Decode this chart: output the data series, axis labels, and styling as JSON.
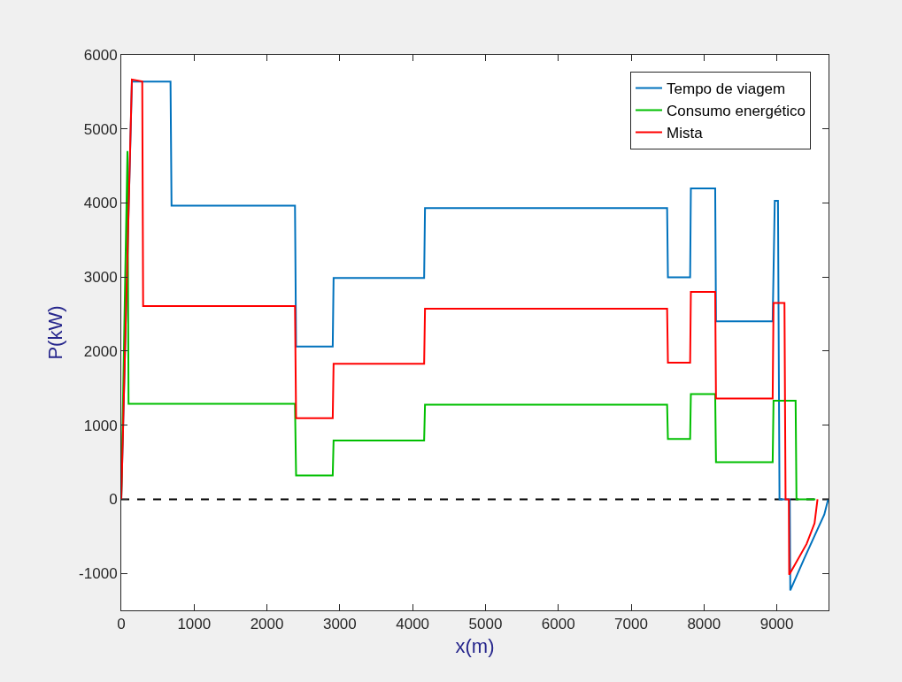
{
  "chart_data": {
    "type": "line",
    "xlabel": "x(m)",
    "ylabel": "P(kW)",
    "xlim": [
      0,
      9710
    ],
    "ylim": [
      -1500,
      6000
    ],
    "xticks": [
      0,
      1000,
      2000,
      3000,
      4000,
      5000,
      6000,
      7000,
      8000,
      9000
    ],
    "yticks": [
      -1000,
      0,
      1000,
      2000,
      3000,
      4000,
      5000,
      6000
    ],
    "grid": false,
    "legend": "top right",
    "line_style": "solid",
    "marker": "none",
    "series": [
      {
        "name": "Tempo de viagem",
        "color": "#0072bd",
        "x": [
          0,
          146,
          676,
          690,
          2385,
          2400,
          2903,
          2915,
          4158,
          4170,
          7494,
          7505,
          7810,
          7820,
          8154,
          8165,
          8943,
          8972,
          9016,
          9037,
          9178,
          9185,
          9377,
          9559,
          9652,
          9705
        ],
        "values": [
          0,
          5640,
          5640,
          3964,
          3964,
          2063,
          2063,
          2988,
          2988,
          3932,
          3932,
          2996,
          2996,
          4198,
          4198,
          2401,
          2401,
          4028,
          4028,
          0,
          0,
          -1230,
          -801,
          -405,
          -206,
          0
        ]
      },
      {
        "name": "Consumo energético",
        "color": "#00bf00",
        "x": [
          0,
          85,
          100,
          2385,
          2400,
          2903,
          2915,
          4158,
          4170,
          7494,
          7505,
          7810,
          7820,
          8154,
          8165,
          8943,
          8955,
          9258,
          9270,
          9530
        ],
        "values": [
          0,
          4700,
          1290,
          1290,
          321,
          321,
          794,
          794,
          1278,
          1278,
          813,
          813,
          1421,
          1421,
          500,
          500,
          1330,
          1330,
          0,
          0
        ]
      },
      {
        "name": "Mista",
        "color": "#ff0000",
        "x": [
          0,
          146,
          288,
          300,
          2385,
          2400,
          2903,
          2915,
          4158,
          4170,
          7494,
          7505,
          7810,
          7820,
          8154,
          8165,
          8943,
          8955,
          9105,
          9120,
          9165,
          9170,
          9409,
          9518,
          9559
        ],
        "values": [
          0,
          5667,
          5640,
          2607,
          2607,
          1095,
          1095,
          1830,
          1830,
          2571,
          2571,
          1845,
          1845,
          2798,
          2798,
          1361,
          1361,
          2651,
          2651,
          0,
          0,
          -1020,
          -603,
          -325,
          0
        ]
      }
    ],
    "ref_lines": [
      {
        "axis": "y",
        "value": 0,
        "color": "#000000",
        "line_style": "dashed"
      }
    ]
  }
}
